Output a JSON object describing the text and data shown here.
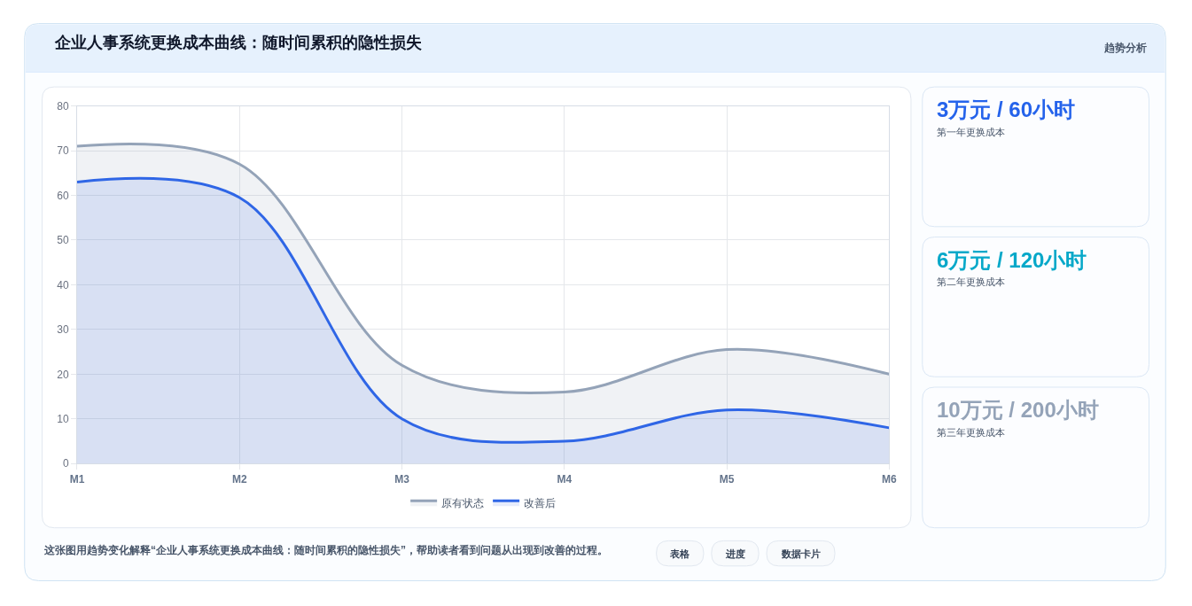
{
  "chart_data": [
    {
      "type": "area",
      "title": "企业人事系统更换成本曲线：随时间累积的隐性损失",
      "categories": [
        "M1",
        "M2",
        "M3",
        "M4",
        "M5",
        "M6"
      ],
      "series": [
        {
          "name": "原有状态",
          "color": "#94a3b8",
          "values": [
            71,
            67,
            22,
            16,
            25.5,
            20
          ]
        },
        {
          "name": "改善后",
          "color": "#2f66e6",
          "values": [
            63,
            59.5,
            10,
            5,
            12,
            8
          ]
        }
      ],
      "ylim": [
        0,
        80
      ],
      "yticks": [
        0,
        10,
        20,
        30,
        40,
        50,
        60,
        70,
        80
      ],
      "grid": true,
      "legend": "bottom",
      "annotations": [
        "趋势分析",
        "这张图用趋势变化解释“企业人事系统更换成本曲线：随时间累积的隐性损失”，帮助读者看到问题从出现到改善的过程。",
        "表格",
        "进度",
        "数据卡片"
      ]
    },
    {
      "type": "other",
      "title": "3万元 / 60小时",
      "subtitle": "第一年更换成本",
      "color": "#2563eb"
    },
    {
      "type": "other",
      "title": "6万元 / 120小时",
      "subtitle": "第二年更换成本",
      "color": "#06a8c9"
    },
    {
      "type": "other",
      "title": "10万元 / 200小时",
      "subtitle": "第三年更换成本",
      "color": "#94a3b8"
    }
  ]
}
